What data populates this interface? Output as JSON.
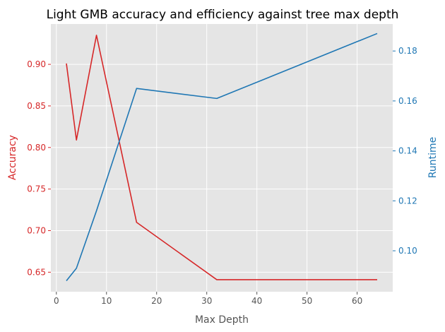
{
  "chart_data": {
    "type": "line",
    "title": "Light GMB accuracy and efficiency against tree max depth",
    "xlabel": "Max Depth",
    "y_left_label": "Accuracy",
    "y_right_label": "Runtime",
    "x": [
      2,
      4,
      8,
      16,
      32,
      64
    ],
    "x_ticks": [
      0,
      10,
      20,
      30,
      40,
      50,
      60
    ],
    "xlim": [
      -1.1,
      67.1
    ],
    "y_left_ticks": [
      0.65,
      0.7,
      0.75,
      0.8,
      0.85,
      0.9
    ],
    "y_left_tick_labels": [
      "0.65",
      "0.70",
      "0.75",
      "0.80",
      "0.85",
      "0.90"
    ],
    "y_left_lim": [
      0.6265,
      0.9485
    ],
    "y_right_ticks": [
      0.1,
      0.12,
      0.14,
      0.16,
      0.18
    ],
    "y_right_tick_labels": [
      "0.10",
      "0.12",
      "0.14",
      "0.16",
      "0.18"
    ],
    "y_right_lim": [
      0.0836,
      0.1908
    ],
    "grid": true,
    "series": [
      {
        "axis": "left",
        "color": "#d62728",
        "values": [
          0.901,
          0.809,
          0.935,
          0.71,
          0.641,
          0.641
        ]
      },
      {
        "axis": "right",
        "color": "#1f77b4",
        "values": [
          0.088,
          0.093,
          0.116,
          0.165,
          0.161,
          0.187
        ]
      }
    ],
    "colors": {
      "plot_background": "#e5e5e5",
      "grid": "#ffffff",
      "left_axis": "#d62728",
      "right_axis": "#1f77b4",
      "text": "#000000",
      "x_axis_text": "#555555"
    }
  }
}
